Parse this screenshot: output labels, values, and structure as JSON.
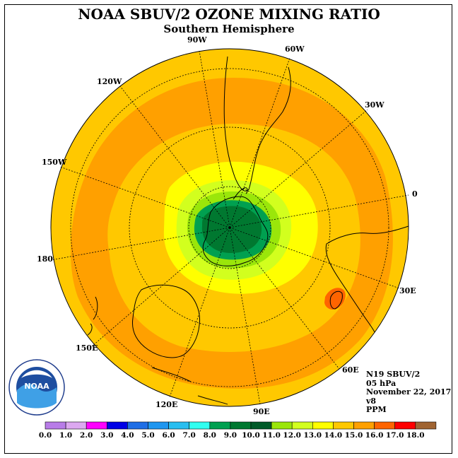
{
  "title": "NOAA SBUV/2 OZONE MIXING RATIO",
  "subtitle": "Southern Hemisphere",
  "longitude_labels": [
    "90W",
    "60W",
    "30W",
    "0",
    "30E",
    "60E",
    "90E",
    "120E",
    "150E",
    "180",
    "150W",
    "120W"
  ],
  "info": {
    "satellite": "N19 SBUV/2",
    "level": "05 hPa",
    "date": "November 22, 2017",
    "version": "v8",
    "units": "PPM"
  },
  "logo": {
    "text": "NOAA",
    "ring_text": "NATIONAL OCEANIC AND ATMOSPHERIC ADMINISTRATION · U.S. DEPARTMENT OF COMMERCE"
  },
  "colorbar": {
    "labels": [
      "0.0",
      "1.0",
      "2.0",
      "3.0",
      "4.0",
      "5.0",
      "6.0",
      "7.0",
      "8.0",
      "9.0",
      "10.0",
      "11.0",
      "12.0",
      "13.0",
      "14.0",
      "15.0",
      "16.0",
      "17.0",
      "18.0"
    ],
    "colors": [
      "#b87ce8",
      "#dca8f0",
      "#ff00ff",
      "#0000e6",
      "#1e6ee6",
      "#1e96f0",
      "#28bef0",
      "#30fff0",
      "#00a050",
      "#007830",
      "#005a28",
      "#9ae60a",
      "#d2ff1e",
      "#ffff00",
      "#ffc800",
      "#ffa000",
      "#ff6400",
      "#ff0000",
      "#a06432"
    ]
  },
  "colors": {
    "ring_outer": "#ffc800",
    "band_orange": "#ffa000",
    "band_inner_gold": "#ffc800",
    "yellow": "#ffff00",
    "lime": "#d2ff1e",
    "light_green": "#9ae60a",
    "green": "#00a050",
    "dark_green": "#007830",
    "hotspot": "#ff6400"
  }
}
